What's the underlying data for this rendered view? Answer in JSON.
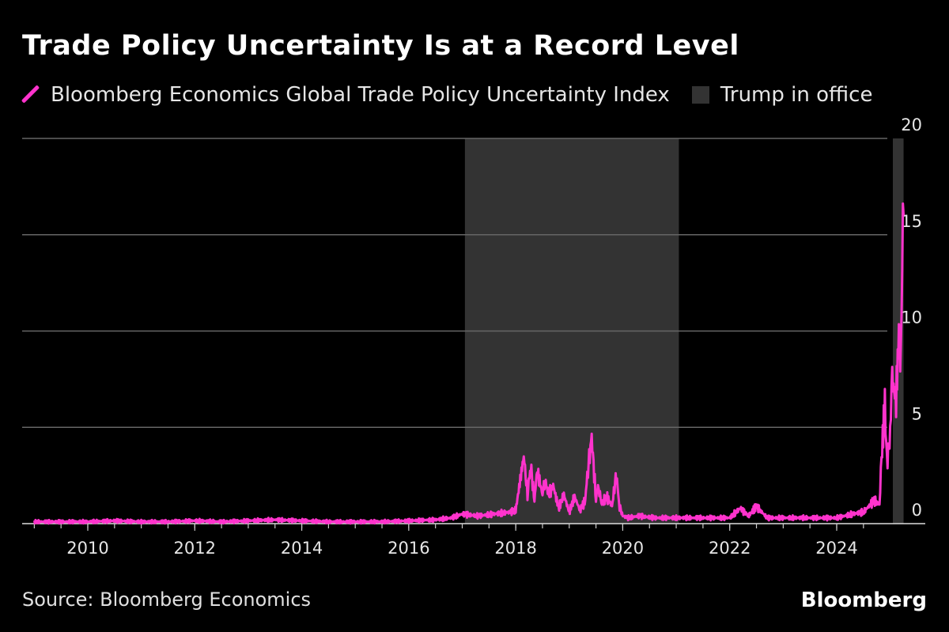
{
  "title": "Trade Policy Uncertainty Is at a Record Level",
  "source": "Source: Bloomberg Economics",
  "brand": "Bloomberg",
  "colors": {
    "background": "#000000",
    "series": "#ff33cc",
    "shade": "#333333",
    "grid": "#666666"
  },
  "chart_data": {
    "type": "line",
    "title": "Trade Policy Uncertainty Is at a Record Level",
    "xlabel": "",
    "ylabel": "",
    "xlim": [
      2008.9,
      2025.35
    ],
    "ylim": [
      0,
      20
    ],
    "y_ticks": [
      0,
      5,
      10,
      15,
      20
    ],
    "x_ticks": [
      2010,
      2012,
      2014,
      2016,
      2018,
      2020,
      2022,
      2024
    ],
    "x_tick_labels": [
      "2010",
      "2012",
      "2014",
      "2016",
      "2018",
      "2020",
      "2022",
      "2024"
    ],
    "y_axis_side": "right",
    "grid": true,
    "legend_position": "top-left",
    "series": [
      {
        "name": "Bloomberg Economics Global Trade Policy Uncertainty Index",
        "color": "#ff33cc",
        "x": [
          2009.0,
          2009.5,
          2010.0,
          2010.5,
          2011.0,
          2011.5,
          2012.0,
          2012.5,
          2013.0,
          2013.5,
          2014.0,
          2014.5,
          2015.0,
          2015.5,
          2016.0,
          2016.5,
          2016.8,
          2017.0,
          2017.3,
          2017.6,
          2017.9,
          2018.0,
          2018.15,
          2018.22,
          2018.28,
          2018.35,
          2018.4,
          2018.5,
          2018.55,
          2018.62,
          2018.7,
          2018.8,
          2018.9,
          2019.0,
          2019.1,
          2019.2,
          2019.3,
          2019.35,
          2019.42,
          2019.5,
          2019.55,
          2019.6,
          2019.7,
          2019.8,
          2019.88,
          2019.93,
          2020.0,
          2020.1,
          2020.3,
          2020.6,
          2021.0,
          2021.5,
          2022.0,
          2022.2,
          2022.35,
          2022.5,
          2022.7,
          2023.0,
          2023.5,
          2024.0,
          2024.3,
          2024.5,
          2024.7,
          2024.8,
          2024.85,
          2024.9,
          2024.95,
          2025.0,
          2025.05,
          2025.1,
          2025.15,
          2025.2,
          2025.25
        ],
        "values": [
          0.1,
          0.1,
          0.1,
          0.15,
          0.1,
          0.1,
          0.15,
          0.1,
          0.15,
          0.2,
          0.15,
          0.1,
          0.1,
          0.1,
          0.15,
          0.2,
          0.3,
          0.5,
          0.4,
          0.5,
          0.6,
          0.7,
          3.5,
          1.5,
          3.0,
          1.2,
          2.8,
          1.5,
          2.2,
          1.5,
          2.0,
          0.8,
          1.5,
          0.6,
          1.4,
          0.7,
          1.2,
          2.8,
          4.5,
          1.2,
          2.0,
          1.0,
          1.4,
          0.9,
          2.6,
          1.0,
          0.4,
          0.3,
          0.4,
          0.3,
          0.3,
          0.3,
          0.3,
          0.8,
          0.4,
          0.9,
          0.3,
          0.3,
          0.3,
          0.3,
          0.5,
          0.6,
          1.2,
          1.0,
          4.0,
          6.0,
          3.0,
          5.0,
          8.0,
          6.0,
          9.0,
          9.5,
          16.0
        ]
      }
    ],
    "shaded_regions": [
      {
        "name": "Trump in office",
        "start": 2017.05,
        "end": 2021.05
      },
      {
        "name": "Trump in office",
        "start": 2025.05,
        "end": 2025.25
      }
    ]
  },
  "legend": [
    {
      "label": "Bloomberg Economics Global Trade Policy Uncertainty Index",
      "kind": "line"
    },
    {
      "label": "Trump in office",
      "kind": "box"
    }
  ]
}
